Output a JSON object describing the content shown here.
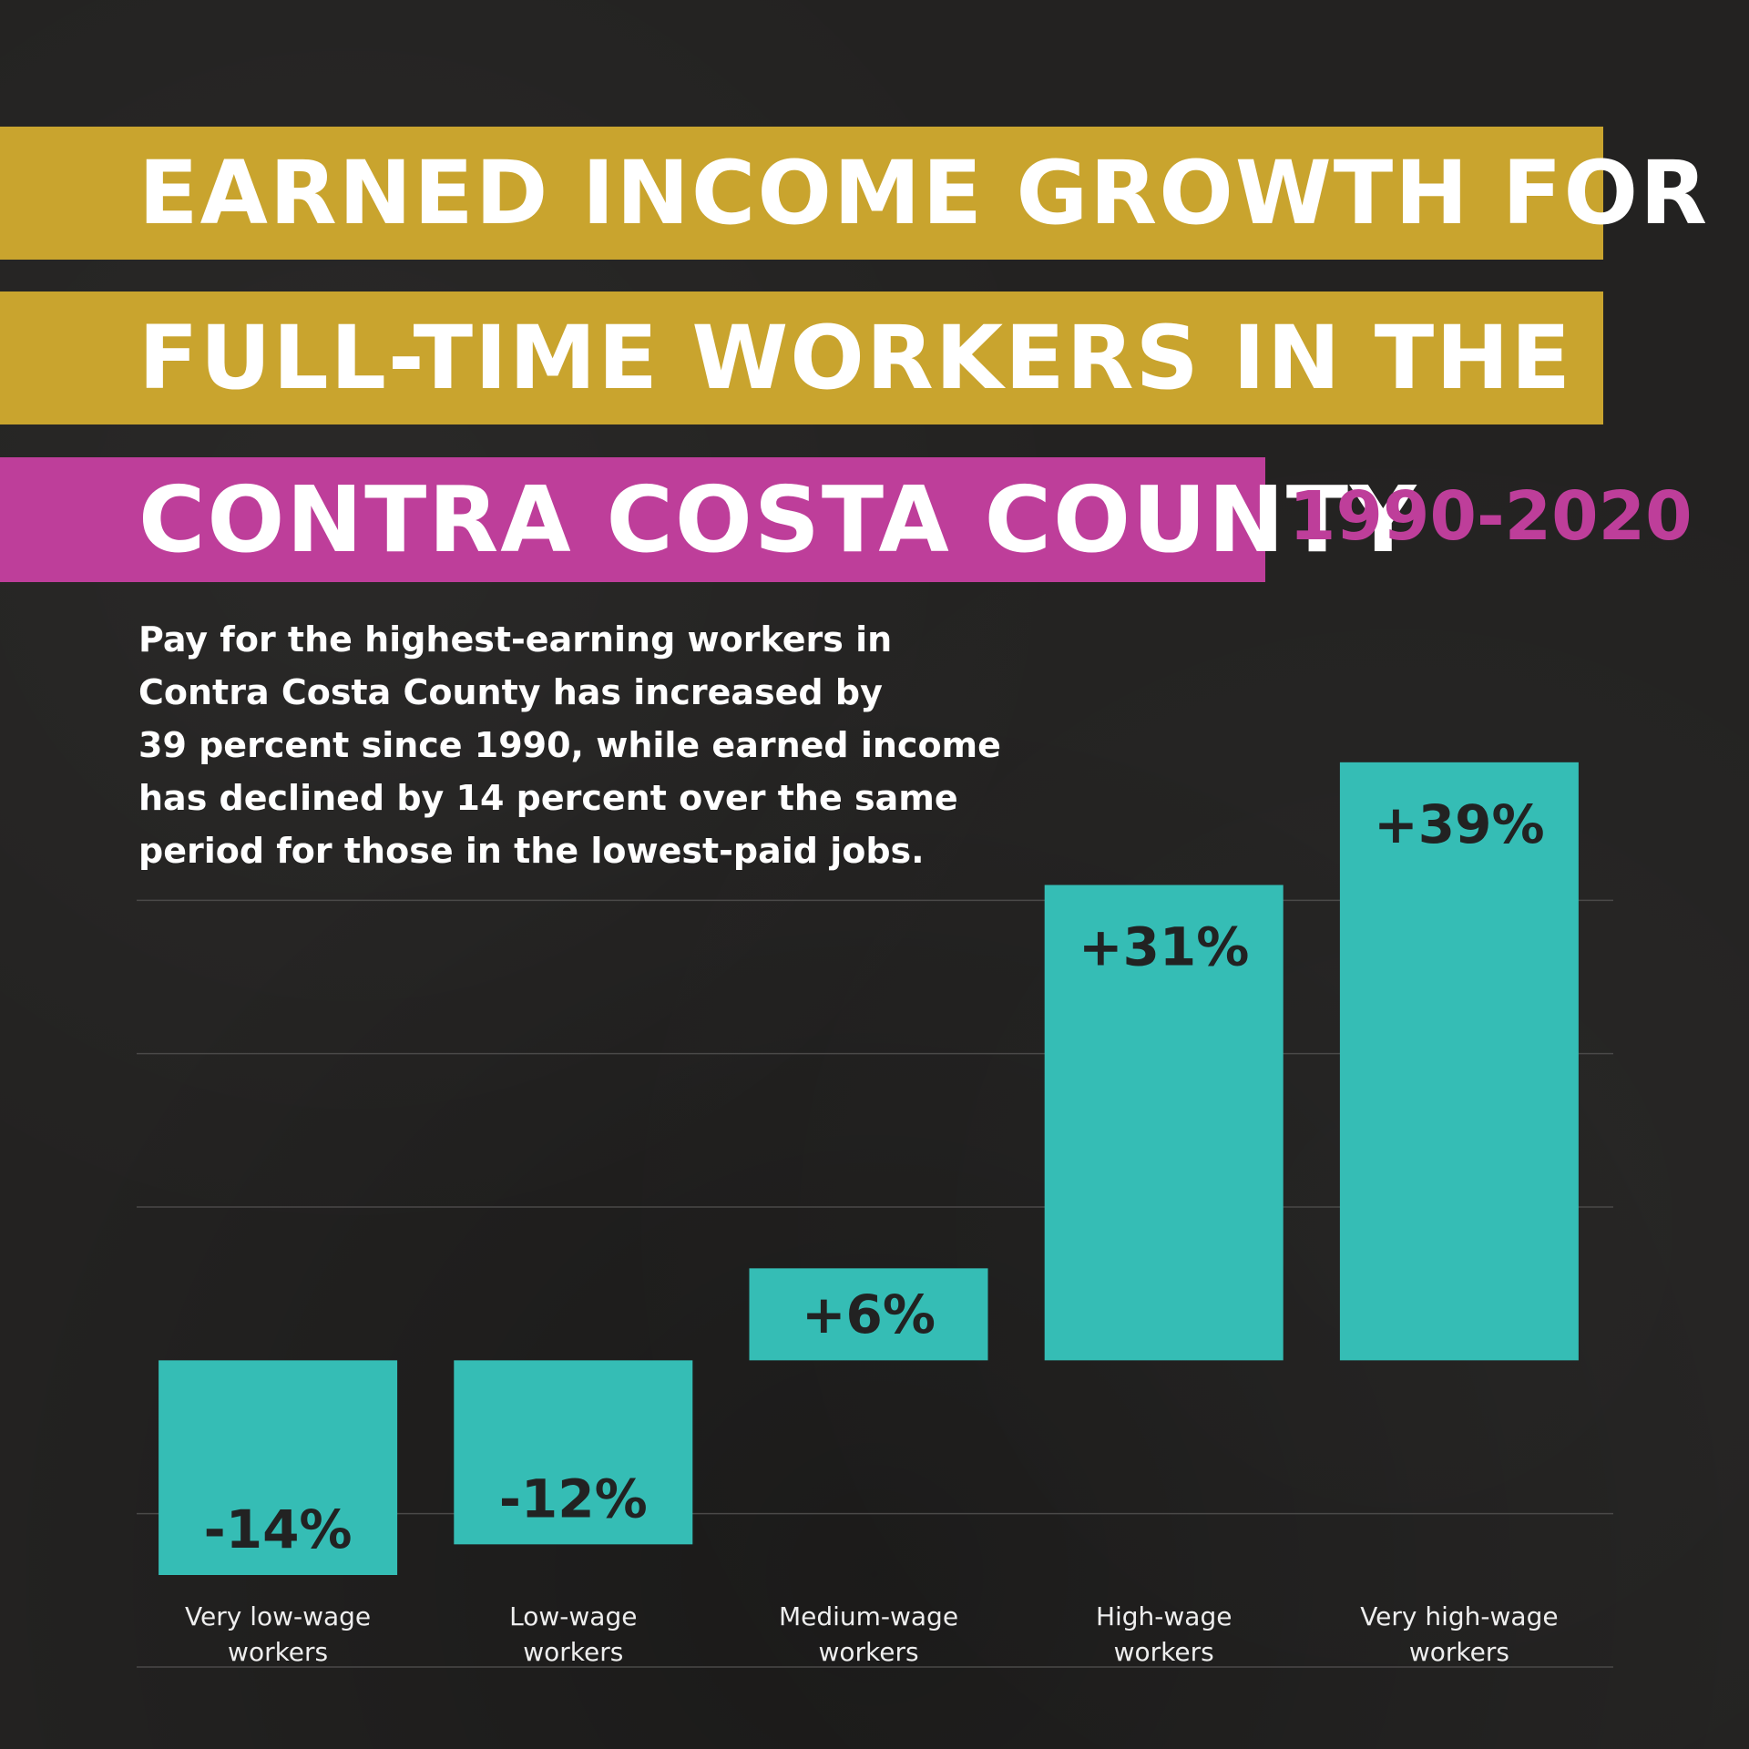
{
  "title": {
    "line1": "EARNED INCOME GROWTH FOR",
    "line2": "FULL-TIME WORKERS IN THE",
    "line3": "CONTRA COSTA COUNTY",
    "years": "1990-2020"
  },
  "description": "Pay for the highest-earning workers in\nContra Costa County has increased by\n39 percent since 1990, while earned income\nhas declined by 14 percent over the same\nperiod for those in the lowest-paid jobs.",
  "colors": {
    "background": "#232221",
    "gold": "#c9a42e",
    "magenta": "#be3e9a",
    "bar": "#35bdb5",
    "bar_label": "#222222",
    "category_label": "#eeeeee",
    "gridline": "#4a4948"
  },
  "chart_data": {
    "type": "bar",
    "categories": [
      "Very low-wage\nworkers",
      "Low-wage\nworkers",
      "Medium-wage\nworkers",
      "High-wage\nworkers",
      "Very high-wage\nworkers"
    ],
    "values": [
      -14,
      -12,
      6,
      31,
      39
    ],
    "data_labels": [
      "-14%",
      "-12%",
      "+6%",
      "+31%",
      "+39%"
    ],
    "ylim": [
      -20,
      40
    ],
    "grid": true
  }
}
